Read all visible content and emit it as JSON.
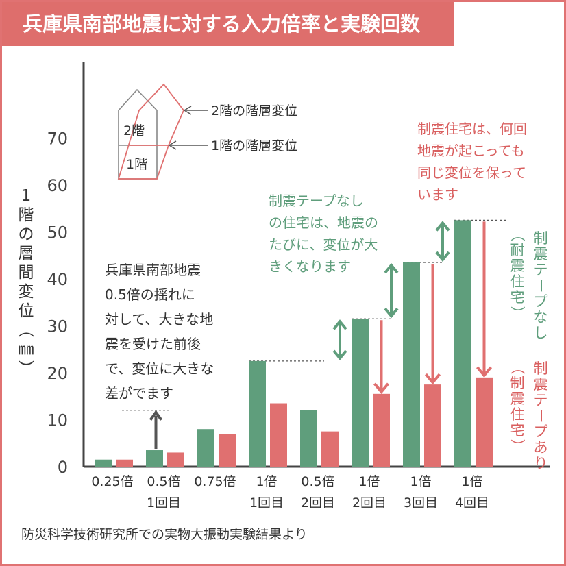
{
  "title": "兵庫県南部地震に対する入力倍率と実験回数",
  "source_note": "防災科学技術研究所での実物大振動実験結果より",
  "colors": {
    "title_bg": "#de6e6c",
    "green": "#5f9e7c",
    "red": "#e07070",
    "green_text": "#5f9e7c",
    "red_text": "#d95f5f",
    "axis": "#444444",
    "text": "#333333"
  },
  "inset": {
    "floor2_label": "2階",
    "floor1_label": "1階",
    "floor2_caption": "2階の階層変位",
    "floor1_caption": "1階の階層変位"
  },
  "annotations": {
    "left_note": [
      "兵庫県南部地震",
      "0.5倍の揺れに",
      "対して、大きな地",
      "震を受けた前後",
      "で、変位に大きな",
      "差がでます"
    ],
    "green_note": [
      "制震テープなし",
      "の住宅は、地震の",
      "たびに、変位が大",
      "きくなります"
    ],
    "red_note": [
      "制震住宅は、何回",
      "地震が起こっても",
      "同じ変位を保って",
      "います"
    ],
    "series_labels": {
      "without": [
        "制震テープなし",
        "（耐震住宅）"
      ],
      "with": [
        "制震テープあり",
        "（制震住宅）"
      ]
    }
  },
  "chart_data": {
    "type": "bar",
    "title": "兵庫県南部地震に対する入力倍率と実験回数",
    "ylabel": "1階の層間変位（㎜）",
    "xlabel": "",
    "ylim": [
      0,
      80
    ],
    "yticks": [
      0,
      10,
      20,
      30,
      40,
      50,
      60,
      70
    ],
    "categories": [
      [
        "0.25倍",
        ""
      ],
      [
        "0.5倍",
        "1回目"
      ],
      [
        "0.75倍",
        ""
      ],
      [
        "1倍",
        "1回目"
      ],
      [
        "0.5倍",
        "2回目"
      ],
      [
        "1倍",
        "2回目"
      ],
      [
        "1倍",
        "3回目"
      ],
      [
        "1倍",
        "4回目"
      ]
    ],
    "series": [
      {
        "name": "制震テープなし（耐震住宅）",
        "color": "#5f9e7c",
        "values": [
          1.5,
          3.5,
          8,
          22.5,
          12,
          31.5,
          43.5,
          52.5
        ]
      },
      {
        "name": "制震テープあり（制震住宅）",
        "color": "#e07070",
        "values": [
          1.5,
          3,
          7,
          13.5,
          7.5,
          15.5,
          17.5,
          19
        ]
      }
    ],
    "grid": false
  }
}
